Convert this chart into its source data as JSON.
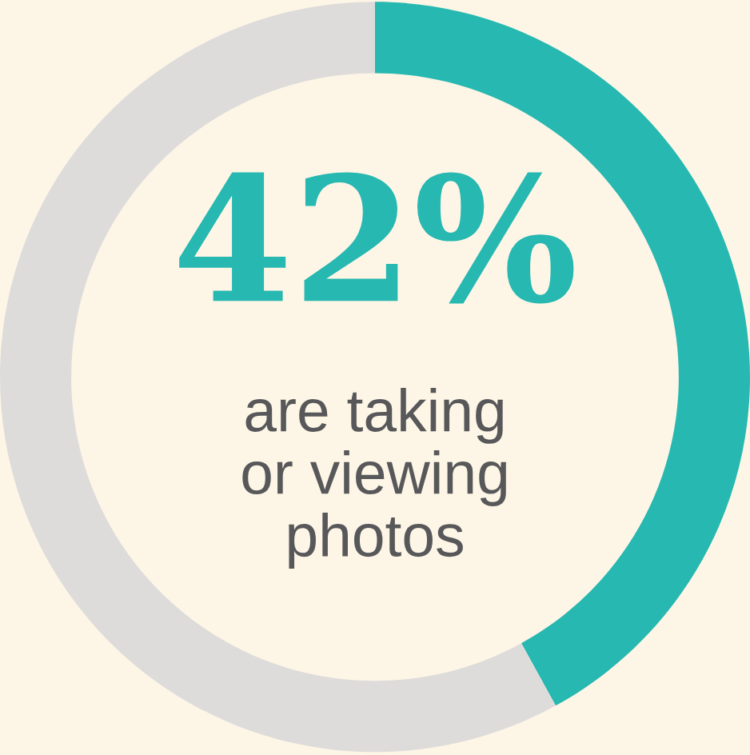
{
  "chart_data": {
    "type": "donut",
    "categories": [
      null,
      null
    ],
    "values": [
      42,
      58
    ],
    "colors": [
      "#26b8b1",
      "#dedcdb"
    ],
    "value_labels": [
      "42%",
      null
    ],
    "annotations": [
      "are taking\nor viewing\nphotos"
    ]
  }
}
